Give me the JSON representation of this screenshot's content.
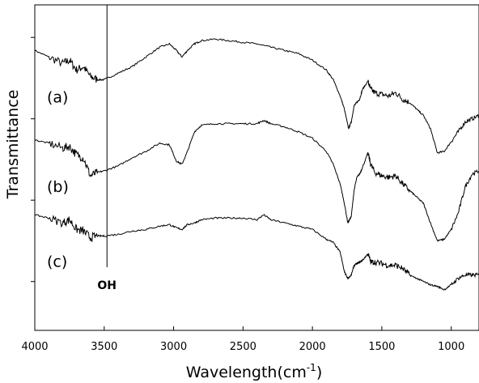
{
  "chart_data": {
    "type": "line",
    "xlabel": "Wavelength(cm",
    "xlabel_sup": "-1",
    "xlabel_suffix": ")",
    "ylabel": "Transmittance",
    "xlim": [
      4000,
      800
    ],
    "x_reversed": true,
    "ylim": [
      0,
      100
    ],
    "x_ticks": [
      4000,
      3500,
      3000,
      2500,
      2000,
      1500,
      1000
    ],
    "x_tick_labels": [
      "4000",
      "3500",
      "3000",
      "2500",
      "2000",
      "1500",
      "1000"
    ],
    "y_tick_labels_shown": false,
    "grid": false,
    "legend": "none",
    "annotations": [
      {
        "text": "OH",
        "x": 3480,
        "type": "vertical-line"
      }
    ],
    "series": [
      {
        "name": "(a)",
        "points": [
          [
            4000,
            86
          ],
          [
            3900,
            84
          ],
          [
            3800,
            82
          ],
          [
            3750,
            83
          ],
          [
            3700,
            80
          ],
          [
            3650,
            81
          ],
          [
            3600,
            78
          ],
          [
            3550,
            77
          ],
          [
            3500,
            77
          ],
          [
            3400,
            79
          ],
          [
            3300,
            81
          ],
          [
            3200,
            84
          ],
          [
            3100,
            87
          ],
          [
            3030,
            88
          ],
          [
            2980,
            86
          ],
          [
            2940,
            84
          ],
          [
            2900,
            86
          ],
          [
            2850,
            88
          ],
          [
            2800,
            89
          ],
          [
            2700,
            89.5
          ],
          [
            2600,
            89
          ],
          [
            2500,
            88.5
          ],
          [
            2400,
            88
          ],
          [
            2300,
            87
          ],
          [
            2200,
            86
          ],
          [
            2100,
            85
          ],
          [
            2000,
            83
          ],
          [
            1900,
            80
          ],
          [
            1850,
            77
          ],
          [
            1800,
            72
          ],
          [
            1770,
            68
          ],
          [
            1740,
            62
          ],
          [
            1720,
            64
          ],
          [
            1700,
            69
          ],
          [
            1680,
            70
          ],
          [
            1660,
            71
          ],
          [
            1640,
            74
          ],
          [
            1600,
            76.5
          ],
          [
            1580,
            74
          ],
          [
            1550,
            73
          ],
          [
            1500,
            72.5
          ],
          [
            1450,
            72
          ],
          [
            1400,
            73
          ],
          [
            1350,
            71
          ],
          [
            1300,
            70
          ],
          [
            1250,
            68
          ],
          [
            1200,
            66
          ],
          [
            1150,
            62
          ],
          [
            1100,
            54.5
          ],
          [
            1050,
            55
          ],
          [
            1000,
            58
          ],
          [
            950,
            61
          ],
          [
            900,
            64
          ],
          [
            850,
            65
          ],
          [
            800,
            66
          ]
        ]
      },
      {
        "name": "(b)",
        "points": [
          [
            4000,
            58.5
          ],
          [
            3900,
            57.5
          ],
          [
            3800,
            56
          ],
          [
            3750,
            56.5
          ],
          [
            3700,
            54
          ],
          [
            3650,
            53
          ],
          [
            3600,
            47.5
          ],
          [
            3550,
            48.5
          ],
          [
            3500,
            49
          ],
          [
            3400,
            50.5
          ],
          [
            3300,
            53
          ],
          [
            3200,
            55
          ],
          [
            3100,
            57.5
          ],
          [
            3030,
            57
          ],
          [
            2980,
            52
          ],
          [
            2940,
            51
          ],
          [
            2900,
            55
          ],
          [
            2850,
            61
          ],
          [
            2800,
            63
          ],
          [
            2700,
            63.5
          ],
          [
            2600,
            63.5
          ],
          [
            2500,
            63.5
          ],
          [
            2400,
            63.5
          ],
          [
            2350,
            64.5
          ],
          [
            2300,
            63.5
          ],
          [
            2200,
            62.5
          ],
          [
            2100,
            61
          ],
          [
            2000,
            59
          ],
          [
            1900,
            55
          ],
          [
            1850,
            51
          ],
          [
            1800,
            45
          ],
          [
            1770,
            39
          ],
          [
            1745,
            33
          ],
          [
            1720,
            35
          ],
          [
            1700,
            43
          ],
          [
            1680,
            47
          ],
          [
            1660,
            48
          ],
          [
            1640,
            50
          ],
          [
            1600,
            54.5
          ],
          [
            1580,
            51
          ],
          [
            1550,
            48.5
          ],
          [
            1500,
            47.5
          ],
          [
            1450,
            47
          ],
          [
            1400,
            47.5
          ],
          [
            1350,
            45
          ],
          [
            1300,
            43
          ],
          [
            1250,
            41
          ],
          [
            1200,
            39
          ],
          [
            1150,
            33
          ],
          [
            1100,
            27.5
          ],
          [
            1050,
            28
          ],
          [
            1000,
            31
          ],
          [
            950,
            36
          ],
          [
            900,
            44
          ],
          [
            850,
            48
          ],
          [
            800,
            49
          ]
        ]
      },
      {
        "name": "(c)",
        "points": [
          [
            4000,
            35.5
          ],
          [
            3900,
            34.5
          ],
          [
            3800,
            33
          ],
          [
            3750,
            34
          ],
          [
            3700,
            31
          ],
          [
            3650,
            30.5
          ],
          [
            3600,
            28.5
          ],
          [
            3550,
            29
          ],
          [
            3500,
            29
          ],
          [
            3400,
            29.5
          ],
          [
            3300,
            30.5
          ],
          [
            3200,
            31
          ],
          [
            3100,
            32
          ],
          [
            3030,
            32.5
          ],
          [
            2980,
            31.5
          ],
          [
            2940,
            31
          ],
          [
            2900,
            32.5
          ],
          [
            2850,
            33
          ],
          [
            2800,
            34
          ],
          [
            2700,
            34.5
          ],
          [
            2600,
            34.5
          ],
          [
            2500,
            34.5
          ],
          [
            2400,
            34
          ],
          [
            2350,
            35.5
          ],
          [
            2300,
            34
          ],
          [
            2200,
            33
          ],
          [
            2100,
            32
          ],
          [
            2000,
            31
          ],
          [
            1900,
            28
          ],
          [
            1850,
            27
          ],
          [
            1800,
            24
          ],
          [
            1770,
            18
          ],
          [
            1745,
            16
          ],
          [
            1720,
            17
          ],
          [
            1700,
            20
          ],
          [
            1680,
            20.5
          ],
          [
            1660,
            21
          ],
          [
            1640,
            21.5
          ],
          [
            1600,
            23.5
          ],
          [
            1580,
            21
          ],
          [
            1550,
            21
          ],
          [
            1500,
            20.5
          ],
          [
            1450,
            20
          ],
          [
            1400,
            20
          ],
          [
            1350,
            19
          ],
          [
            1300,
            17
          ],
          [
            1250,
            16
          ],
          [
            1200,
            15
          ],
          [
            1150,
            14
          ],
          [
            1100,
            13.5
          ],
          [
            1050,
            12.5
          ],
          [
            1000,
            14
          ],
          [
            950,
            16
          ],
          [
            900,
            17
          ],
          [
            850,
            17
          ],
          [
            800,
            17
          ]
        ]
      }
    ]
  }
}
